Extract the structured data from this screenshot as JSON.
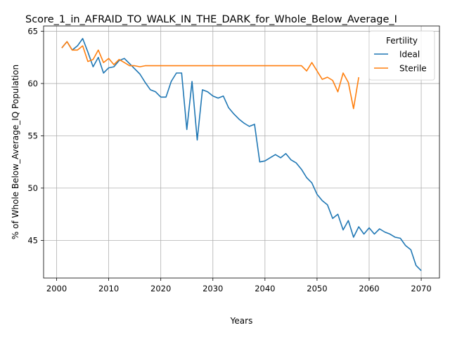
{
  "chart_data": {
    "type": "line",
    "title": "Score_1_in_AFRAID_TO_WALK_IN_THE_DARK_for_Whole_Below_Average_I",
    "xlabel": "Years",
    "ylabel": "% of Whole Below_Average_IQ Population",
    "xlim": [
      1997.5,
      2073.5
    ],
    "ylim": [
      41.4,
      65.5
    ],
    "xticks": [
      2000,
      2010,
      2020,
      2030,
      2040,
      2050,
      2060,
      2070
    ],
    "yticks": [
      45,
      50,
      55,
      60,
      65
    ],
    "grid": true,
    "legend": {
      "title": "Fertility",
      "placement": "top-right"
    },
    "series": [
      {
        "name": "Ideal",
        "color": "#1f77b4",
        "x": [
          2001,
          2002,
          2003,
          2004,
          2005,
          2006,
          2007,
          2008,
          2009,
          2010,
          2011,
          2012,
          2013,
          2014,
          2015,
          2016,
          2017,
          2018,
          2019,
          2020,
          2021,
          2022,
          2023,
          2024,
          2025,
          2026,
          2027,
          2028,
          2029,
          2030,
          2031,
          2032,
          2033,
          2034,
          2035,
          2036,
          2037,
          2038,
          2039,
          2040,
          2041,
          2042,
          2043,
          2044,
          2045,
          2046,
          2047,
          2048,
          2049,
          2050,
          2051,
          2052,
          2053,
          2054,
          2055,
          2056,
          2057,
          2058,
          2059,
          2060,
          2061,
          2062,
          2063,
          2064,
          2065,
          2066,
          2067,
          2068,
          2069,
          2070
        ],
        "values": [
          63.4,
          64.0,
          63.2,
          63.6,
          64.3,
          63.0,
          61.6,
          62.5,
          61.0,
          61.5,
          61.6,
          62.2,
          62.4,
          61.9,
          61.4,
          60.9,
          60.1,
          59.4,
          59.2,
          58.7,
          58.7,
          60.2,
          61.0,
          61.0,
          55.6,
          60.2,
          54.6,
          59.4,
          59.2,
          58.8,
          58.6,
          58.8,
          57.7,
          57.1,
          56.6,
          56.2,
          55.9,
          56.1,
          52.5,
          52.6,
          52.9,
          53.2,
          52.9,
          53.3,
          52.7,
          52.4,
          51.8,
          51.0,
          50.5,
          49.4,
          48.8,
          48.4,
          47.1,
          47.5,
          46.0,
          46.9,
          45.3,
          46.3,
          45.6,
          46.2,
          45.6,
          46.1,
          45.8,
          45.6,
          45.3,
          45.2,
          44.5,
          44.1,
          42.6,
          42.1
        ]
      },
      {
        "name": "Sterile",
        "color": "#ff7f0e",
        "x": [
          2001,
          2002,
          2003,
          2004,
          2005,
          2006,
          2007,
          2008,
          2009,
          2010,
          2011,
          2012,
          2013,
          2014,
          2015,
          2016,
          2017,
          2018,
          2019,
          2020,
          2021,
          2022,
          2023,
          2024,
          2025,
          2026,
          2027,
          2028,
          2029,
          2030,
          2031,
          2032,
          2033,
          2034,
          2035,
          2036,
          2037,
          2038,
          2039,
          2040,
          2041,
          2042,
          2043,
          2044,
          2045,
          2046,
          2047,
          2048,
          2049,
          2050,
          2051,
          2052,
          2053,
          2054,
          2055,
          2056,
          2057,
          2058
        ],
        "values": [
          63.4,
          64.0,
          63.2,
          63.2,
          63.6,
          62.1,
          62.3,
          63.2,
          62.0,
          62.4,
          61.8,
          62.3,
          62.0,
          61.7,
          61.7,
          61.6,
          61.7,
          61.7,
          61.7,
          61.7,
          61.7,
          61.7,
          61.7,
          61.7,
          61.7,
          61.7,
          61.7,
          61.7,
          61.7,
          61.7,
          61.7,
          61.7,
          61.7,
          61.7,
          61.7,
          61.7,
          61.7,
          61.7,
          61.7,
          61.7,
          61.7,
          61.7,
          61.7,
          61.7,
          61.7,
          61.7,
          61.7,
          61.2,
          62.0,
          61.2,
          60.4,
          60.6,
          60.3,
          59.2,
          61.0,
          60.1,
          57.6,
          60.6
        ]
      }
    ]
  }
}
